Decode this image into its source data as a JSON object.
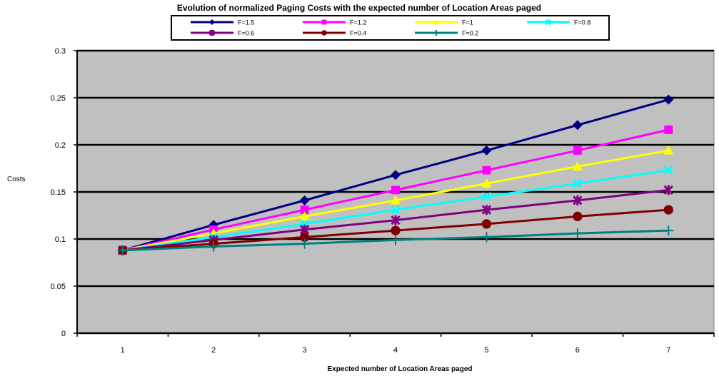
{
  "chart_data": {
    "type": "line",
    "title": "Evolution of normalized Paging Costs with the expected number of Location Areas paged",
    "xlabel": "Expected number  of Location Areas paged",
    "ylabel": "Costs",
    "categories": [
      "1",
      "2",
      "3",
      "4",
      "5",
      "6",
      "7"
    ],
    "ylim": [
      0,
      0.3
    ],
    "yticks": [
      "0",
      "0.05",
      "0.1",
      "0.15",
      "0.2",
      "0.25",
      "0.3"
    ],
    "grid": "horizontal",
    "legend_position": "top",
    "plot_background": "#c0c0c0",
    "series": [
      {
        "name": "F=1.5",
        "color": "#000080",
        "marker": "diamond",
        "values": [
          0.088,
          0.115,
          0.141,
          0.168,
          0.194,
          0.221,
          0.248
        ]
      },
      {
        "name": "F=1.2",
        "color": "#ff00ff",
        "marker": "square",
        "values": [
          0.088,
          0.11,
          0.131,
          0.152,
          0.173,
          0.194,
          0.216
        ]
      },
      {
        "name": "F=1",
        "color": "#ffff00",
        "marker": "triangle",
        "values": [
          0.088,
          0.106,
          0.124,
          0.141,
          0.159,
          0.177,
          0.194
        ]
      },
      {
        "name": "F=0.8",
        "color": "#00ffff",
        "marker": "x",
        "values": [
          0.088,
          0.102,
          0.116,
          0.131,
          0.145,
          0.159,
          0.173
        ]
      },
      {
        "name": "F=0.6",
        "color": "#800080",
        "marker": "star",
        "values": [
          0.088,
          0.099,
          0.11,
          0.12,
          0.131,
          0.141,
          0.152
        ]
      },
      {
        "name": "F=0.4",
        "color": "#800000",
        "marker": "circle",
        "values": [
          0.088,
          0.095,
          0.102,
          0.109,
          0.116,
          0.124,
          0.131
        ]
      },
      {
        "name": "F=0.2",
        "color": "#008080",
        "marker": "plus",
        "values": [
          0.088,
          0.092,
          0.095,
          0.099,
          0.102,
          0.106,
          0.109
        ]
      }
    ]
  }
}
